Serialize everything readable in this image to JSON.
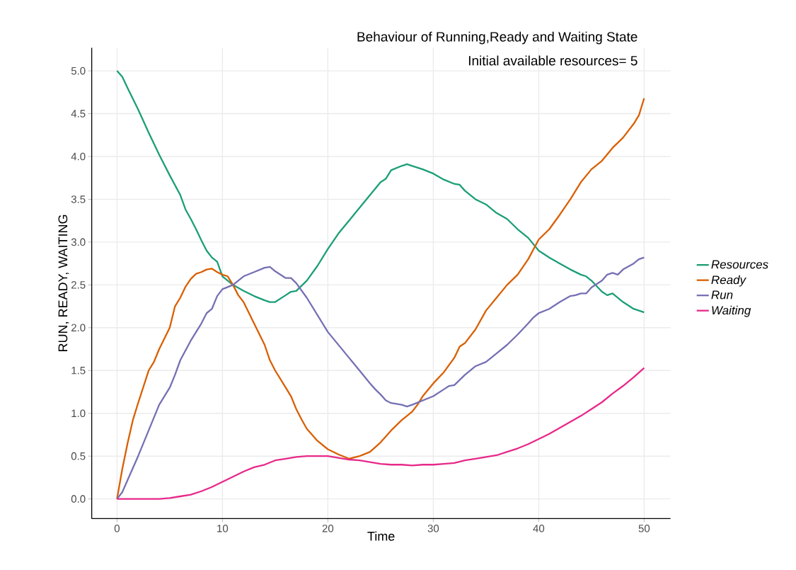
{
  "chart_data": {
    "type": "line",
    "title": "Behaviour of Running,Ready and Waiting State",
    "subtitle": "Initial available resources= 5",
    "xlabel": "Time",
    "ylabel": "RUN, READY, WAITING",
    "xlim": [
      -2.4,
      52.5
    ],
    "ylim": [
      -0.23,
      5.27
    ],
    "xticks": [
      0,
      10,
      20,
      30,
      40,
      50
    ],
    "yticks": [
      {
        "value": 0,
        "label": "0.0"
      },
      {
        "value": 0.5,
        "label": "0.5"
      },
      {
        "value": 1,
        "label": "1.0"
      },
      {
        "value": 1.5,
        "label": "1.5"
      },
      {
        "value": 2,
        "label": "2.0"
      },
      {
        "value": 2.5,
        "label": "2.5"
      },
      {
        "value": 3,
        "label": "3.0"
      },
      {
        "value": 3.5,
        "label": "3.5"
      },
      {
        "value": 4,
        "label": "4.0"
      },
      {
        "value": 4.5,
        "label": "4.5"
      },
      {
        "value": 5,
        "label": "5.0"
      }
    ],
    "grid": true,
    "legend": "right",
    "marker": "none",
    "line_style": "solid",
    "series": [
      {
        "name": "Resources",
        "color": "#1b9e77",
        "x": [
          0,
          0.5,
          1,
          2,
          3,
          4,
          5,
          6,
          6.5,
          7,
          7.5,
          8,
          8.5,
          9,
          9.5,
          10,
          11,
          12,
          13,
          14,
          14.5,
          15,
          16,
          16.5,
          17,
          18,
          19,
          20,
          21,
          22,
          23,
          24,
          25,
          25.5,
          26,
          27,
          27.5,
          28,
          29,
          30,
          31,
          32,
          32.5,
          33,
          34,
          35,
          36,
          37,
          38,
          39,
          40,
          41,
          42,
          43,
          44,
          44.5,
          45,
          46,
          46.5,
          47,
          48,
          49,
          50
        ],
        "values": [
          5.0,
          4.93,
          4.8,
          4.55,
          4.28,
          4.02,
          3.78,
          3.55,
          3.38,
          3.27,
          3.15,
          3.02,
          2.9,
          2.82,
          2.77,
          2.6,
          2.5,
          2.43,
          2.37,
          2.32,
          2.3,
          2.3,
          2.38,
          2.42,
          2.43,
          2.55,
          2.72,
          2.92,
          3.1,
          3.25,
          3.4,
          3.55,
          3.7,
          3.74,
          3.84,
          3.89,
          3.91,
          3.89,
          3.85,
          3.8,
          3.73,
          3.68,
          3.67,
          3.6,
          3.5,
          3.44,
          3.34,
          3.27,
          3.15,
          3.05,
          2.9,
          2.82,
          2.75,
          2.68,
          2.62,
          2.6,
          2.55,
          2.42,
          2.38,
          2.4,
          2.3,
          2.22,
          2.18
        ]
      },
      {
        "name": "Ready",
        "color": "#d95f02",
        "x": [
          0,
          0.5,
          1,
          1.5,
          2,
          3,
          3.5,
          4,
          5,
          5.5,
          6,
          6.5,
          7,
          7.5,
          8,
          8.5,
          9,
          9.5,
          10,
          10.5,
          11,
          11.5,
          12,
          13,
          14,
          14.5,
          15,
          16,
          16.5,
          17,
          17.5,
          18,
          19,
          20,
          21,
          22,
          23,
          24,
          25,
          26,
          27,
          28,
          28.5,
          29,
          30,
          31,
          32,
          32.5,
          33,
          34,
          35,
          36,
          37,
          38,
          39,
          40,
          41,
          42,
          43,
          44,
          45,
          46,
          47,
          48,
          49,
          49.5,
          50
        ],
        "values": [
          0,
          0.35,
          0.65,
          0.92,
          1.12,
          1.5,
          1.6,
          1.75,
          2.0,
          2.25,
          2.35,
          2.48,
          2.57,
          2.63,
          2.65,
          2.68,
          2.69,
          2.65,
          2.62,
          2.6,
          2.5,
          2.38,
          2.3,
          2.05,
          1.8,
          1.62,
          1.5,
          1.3,
          1.2,
          1.05,
          0.93,
          0.82,
          0.68,
          0.58,
          0.52,
          0.47,
          0.5,
          0.55,
          0.66,
          0.8,
          0.92,
          1.02,
          1.1,
          1.2,
          1.35,
          1.48,
          1.65,
          1.78,
          1.82,
          1.98,
          2.2,
          2.35,
          2.5,
          2.62,
          2.8,
          3.03,
          3.15,
          3.32,
          3.5,
          3.7,
          3.85,
          3.95,
          4.1,
          4.22,
          4.38,
          4.48,
          4.68
        ]
      },
      {
        "name": "Run",
        "color": "#7570b3",
        "x": [
          0,
          0.5,
          1,
          2,
          3,
          4,
          5,
          5.5,
          6,
          7,
          8,
          8.5,
          9,
          9.5,
          10,
          11,
          11.5,
          12,
          13,
          14,
          14.5,
          15,
          16,
          16.5,
          17,
          18,
          19,
          20,
          21,
          22,
          23,
          24,
          24.5,
          25,
          25.5,
          26,
          27,
          27.5,
          28,
          29,
          30,
          31,
          31.5,
          32,
          33,
          34,
          35,
          36,
          37,
          38,
          39,
          39.5,
          40,
          41,
          42,
          43,
          43.5,
          44,
          44.5,
          45,
          46,
          46.5,
          47,
          47.5,
          48,
          49,
          49.5,
          50
        ],
        "values": [
          0,
          0.08,
          0.22,
          0.5,
          0.8,
          1.1,
          1.3,
          1.45,
          1.62,
          1.85,
          2.05,
          2.17,
          2.22,
          2.37,
          2.45,
          2.5,
          2.55,
          2.6,
          2.65,
          2.7,
          2.71,
          2.66,
          2.58,
          2.58,
          2.52,
          2.35,
          2.15,
          1.95,
          1.8,
          1.65,
          1.5,
          1.35,
          1.28,
          1.22,
          1.15,
          1.12,
          1.1,
          1.08,
          1.1,
          1.15,
          1.2,
          1.28,
          1.32,
          1.33,
          1.45,
          1.55,
          1.6,
          1.7,
          1.8,
          1.92,
          2.05,
          2.12,
          2.17,
          2.22,
          2.3,
          2.37,
          2.38,
          2.4,
          2.4,
          2.47,
          2.55,
          2.62,
          2.64,
          2.62,
          2.68,
          2.75,
          2.8,
          2.82
        ]
      },
      {
        "name": "Waiting",
        "color": "#e7298a",
        "x": [
          0,
          4,
          5,
          6,
          7,
          8,
          9,
          10,
          11,
          12,
          13,
          14,
          15,
          16,
          17,
          18,
          19,
          20,
          21,
          22,
          23,
          24,
          25,
          26,
          27,
          28,
          29,
          30,
          31,
          32,
          33,
          34,
          35,
          36,
          37,
          38,
          39,
          40,
          41,
          42,
          43,
          44,
          45,
          46,
          47,
          48,
          49,
          50
        ],
        "values": [
          0,
          0,
          0.01,
          0.03,
          0.05,
          0.09,
          0.14,
          0.2,
          0.26,
          0.32,
          0.37,
          0.4,
          0.45,
          0.47,
          0.49,
          0.5,
          0.5,
          0.5,
          0.48,
          0.46,
          0.45,
          0.43,
          0.41,
          0.4,
          0.4,
          0.39,
          0.4,
          0.4,
          0.41,
          0.42,
          0.45,
          0.47,
          0.49,
          0.51,
          0.55,
          0.59,
          0.64,
          0.7,
          0.76,
          0.83,
          0.9,
          0.97,
          1.05,
          1.13,
          1.23,
          1.32,
          1.42,
          1.53
        ]
      }
    ]
  }
}
